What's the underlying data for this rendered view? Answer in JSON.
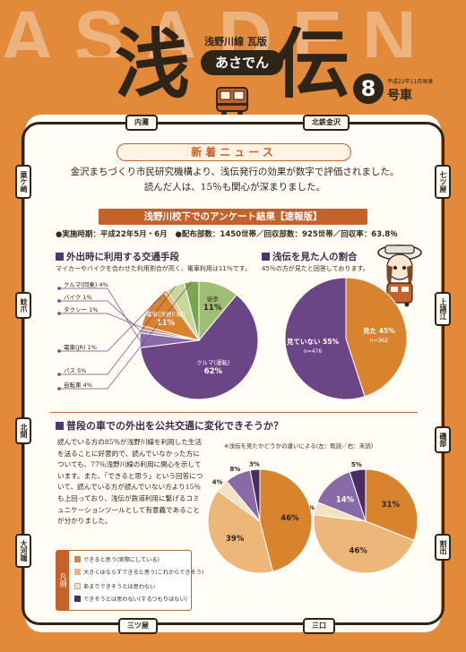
{
  "masthead": {
    "bg_letters": "ASADEN",
    "char1": "浅",
    "char2": "伝",
    "series": "浅野川線 瓦版",
    "pill": "あさでん",
    "issue_number": "8",
    "issue_date": "平成22年11月発車",
    "issue_car": "号車"
  },
  "stations": {
    "top_left": "内灘",
    "top_right": "北鉄金沢",
    "left": [
      "粟ケ崎",
      "蚊爪",
      "北間",
      "大河端"
    ],
    "right": [
      "七ツ屋",
      "上諸江",
      "磯部",
      "割出"
    ],
    "bottom_left": "三ツ屋",
    "bottom_right": "三口"
  },
  "news": {
    "heading": "新着ニュース",
    "line1": "金沢まちづくり市民研究機構より、浅伝発行の効果が数字で評価されました。",
    "line2": "読んだ人は、15％も関心が深まりました。"
  },
  "survey": {
    "title": "浅野川校下でのアンケート結果【速報版】",
    "period": "●実施時期：平成22年5月・6月",
    "stats": "●配布部数：1450世帯／回収部数：925世帯／回収率：63.8％"
  },
  "section1": {
    "title": "外出時に利用する交通手段",
    "sub": "マイカーやバイクを合わせた利用割合が高く、電車利用は11％です。"
  },
  "section2": {
    "title": "浅伝を見た人の割合",
    "sub": "45％の方が見たと回答しております。"
  },
  "section3": {
    "title": "普段の車での外出を公共交通に変化できそうか？",
    "body": "読んでいる方の85％が浅野川線を利用した生活を送ることに好意的で、読んでいなかった方についても、77％浅野川線の利用に関心を示しています。また、「できると思う」という回答について、読んでいる方が読んでいない方より15％も上回っており、浅伝が鉄道利用に繋げるコミュニケーションツールとして有意義であることが分かりました。",
    "chart_note": "※浅伝を見たかどうかの違いによる(左：既読／右：未読)",
    "legend_tag": "凡例",
    "legend": [
      "できると思う(実際にしている)",
      "大きくはならずできると思う(これからできそう)",
      "あまりできそうとは思わない",
      "できそうとは思わない(するつもりはない)"
    ]
  },
  "chart_data": [
    {
      "type": "pie",
      "title": "外出時に利用する交通手段",
      "slices": [
        {
          "label": "徒歩",
          "value": 11,
          "color": "#9fbe73"
        },
        {
          "label": "クルマ(運転)",
          "value": 62,
          "color": "#6b4585"
        },
        {
          "label": "クルマ(同乗)",
          "value": 4,
          "color": "#8a6aa6"
        },
        {
          "label": "バイク",
          "value": 1,
          "color": "#b38dc7"
        },
        {
          "label": "タクシー",
          "value": 1,
          "color": "#d88a4a"
        },
        {
          "label": "電車(浅野川線)",
          "value": 11,
          "color": "#d9832e"
        },
        {
          "label": "電車(JR)",
          "value": 1,
          "color": "#e9b06a"
        },
        {
          "label": "バス",
          "value": 5,
          "color": "#c8d89a"
        },
        {
          "label": "自転車",
          "value": 4,
          "color": "#7aa64e"
        }
      ]
    },
    {
      "type": "pie",
      "title": "浅伝を見た人の割合",
      "slices": [
        {
          "label": "見た",
          "value": 45,
          "count": "n=362",
          "color": "#d9832e"
        },
        {
          "label": "見ていない",
          "value": 55,
          "count": "n=476",
          "color": "#6b4585"
        }
      ]
    },
    {
      "type": "pie",
      "title": "既読",
      "slices": [
        {
          "label": "できると思う",
          "value": 46,
          "color": "#d9832e"
        },
        {
          "label": "大きくはならずできると思う",
          "value": 39,
          "color": "#edb77a"
        },
        {
          "label": "あまりできそうとは思わない",
          "value": 4,
          "color": "#f3e1c4"
        },
        {
          "label": "",
          "value": 8,
          "color": "#8a6aa6"
        },
        {
          "label": "できそうとは思わない",
          "value": 3,
          "color": "#4a2e62"
        }
      ]
    },
    {
      "type": "pie",
      "title": "未読",
      "slices": [
        {
          "label": "できると思う",
          "value": 31,
          "color": "#d9832e"
        },
        {
          "label": "大きくはならずできると思う",
          "value": 46,
          "color": "#edb77a"
        },
        {
          "label": "あまりできそうとは思わない",
          "value": 4,
          "color": "#f3e1c4"
        },
        {
          "label": "",
          "value": 14,
          "color": "#8a6aa6"
        },
        {
          "label": "できそうとは思わない",
          "value": 5,
          "color": "#4a2e62"
        }
      ]
    }
  ],
  "legend_colors": [
    "#d9832e",
    "#edb77a",
    "#f3e1c4",
    "#4a2e62"
  ]
}
